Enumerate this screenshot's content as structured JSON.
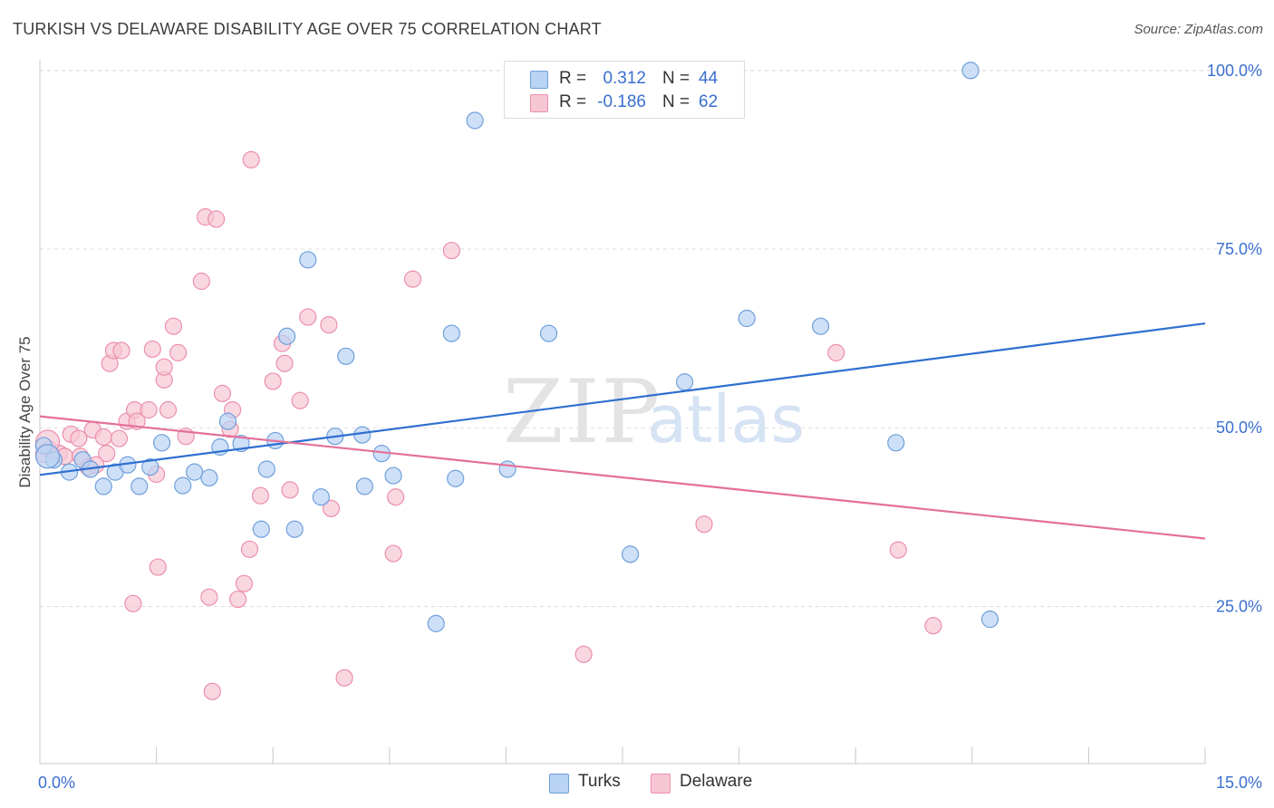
{
  "header": {
    "title": "TURKISH VS DELAWARE DISABILITY AGE OVER 75 CORRELATION CHART",
    "source": "Source: ZipAtlas.com"
  },
  "legend": {
    "rows": [
      {
        "r_label": "R =",
        "r_value": "0.312",
        "n_label": "N =",
        "n_value": "44"
      },
      {
        "r_label": "R =",
        "r_value": "-0.186",
        "n_label": "N =",
        "n_value": "62"
      }
    ]
  },
  "bottom_legend": {
    "items": [
      {
        "label": "Turks"
      },
      {
        "label": "Delaware"
      }
    ]
  },
  "watermark": {
    "zip": "ZIP",
    "atlas": "atlas"
  },
  "colors": {
    "turks_fill": "#b9d3f3",
    "turks_stroke": "#6f9fdc",
    "turks_line": "#2f6fd0",
    "delaware_fill": "#f7c6d4",
    "delaware_stroke": "#ec8fab",
    "delaware_line": "#e4709a",
    "tick_label": "#3a6fd0",
    "grid": "#dddddd"
  },
  "chart_data": {
    "type": "scatter",
    "title": "TURKISH VS DELAWARE DISABILITY AGE OVER 75 CORRELATION CHART",
    "xlabel": "",
    "ylabel": "Disability Age Over 75",
    "xlim": [
      0,
      15
    ],
    "ylim": [
      3,
      102
    ],
    "x_tick_labels": [
      {
        "value": 0,
        "label": "0.0%"
      },
      {
        "value": 15,
        "label": "15.0%"
      }
    ],
    "y_tick_labels": [
      {
        "value": 25,
        "label": "25.0%"
      },
      {
        "value": 50,
        "label": "50.0%"
      },
      {
        "value": 75,
        "label": "75.0%"
      },
      {
        "value": 100,
        "label": "100.0%"
      }
    ],
    "grid": true,
    "legend_position": "top-center",
    "series": [
      {
        "name": "Turks",
        "r": 0.312,
        "n": 44,
        "trend": [
          [
            0,
            43.4
          ],
          [
            15,
            64.6
          ]
        ],
        "points": [
          [
            0.05,
            47.5
          ],
          [
            0.18,
            45.5
          ],
          [
            0.55,
            45.5
          ],
          [
            0.38,
            43.8
          ],
          [
            0.65,
            44.2
          ],
          [
            0.82,
            41.8
          ],
          [
            0.97,
            43.8
          ],
          [
            1.13,
            44.8
          ],
          [
            1.28,
            41.8
          ],
          [
            1.42,
            44.5
          ],
          [
            1.57,
            47.9
          ],
          [
            1.84,
            41.9
          ],
          [
            1.99,
            43.8
          ],
          [
            2.18,
            43.0
          ],
          [
            2.32,
            47.3
          ],
          [
            2.42,
            50.9
          ],
          [
            2.59,
            47.8
          ],
          [
            2.85,
            35.8
          ],
          [
            2.92,
            44.2
          ],
          [
            3.03,
            48.2
          ],
          [
            3.18,
            62.8
          ],
          [
            3.28,
            35.8
          ],
          [
            3.45,
            73.5
          ],
          [
            3.62,
            40.3
          ],
          [
            3.8,
            48.8
          ],
          [
            3.94,
            60.0
          ],
          [
            4.15,
            49.0
          ],
          [
            4.18,
            41.8
          ],
          [
            4.4,
            46.4
          ],
          [
            4.55,
            43.3
          ],
          [
            5.1,
            22.6
          ],
          [
            5.3,
            63.2
          ],
          [
            5.35,
            42.9
          ],
          [
            5.6,
            93.0
          ],
          [
            6.02,
            44.2
          ],
          [
            6.55,
            63.2
          ],
          [
            7.6,
            32.3
          ],
          [
            8.3,
            56.4
          ],
          [
            9.1,
            65.3
          ],
          [
            10.05,
            64.2
          ],
          [
            11.02,
            47.9
          ],
          [
            11.98,
            100.0
          ],
          [
            12.23,
            23.2
          ],
          [
            0.1,
            46.0
          ]
        ]
      },
      {
        "name": "Delaware",
        "r": -0.186,
        "n": 62,
        "trend": [
          [
            0,
            51.6
          ],
          [
            15,
            34.5
          ]
        ],
        "points": [
          [
            0.05,
            46.3
          ],
          [
            0.12,
            47.0
          ],
          [
            0.25,
            46.4
          ],
          [
            0.32,
            46.0
          ],
          [
            0.4,
            49.1
          ],
          [
            0.5,
            48.5
          ],
          [
            0.52,
            46.0
          ],
          [
            0.62,
            44.5
          ],
          [
            0.68,
            49.7
          ],
          [
            0.72,
            44.8
          ],
          [
            0.82,
            48.7
          ],
          [
            0.86,
            46.4
          ],
          [
            0.9,
            59.0
          ],
          [
            0.95,
            60.8
          ],
          [
            1.02,
            48.5
          ],
          [
            1.05,
            60.8
          ],
          [
            1.12,
            50.9
          ],
          [
            1.2,
            25.4
          ],
          [
            1.22,
            52.5
          ],
          [
            1.25,
            50.9
          ],
          [
            1.4,
            52.5
          ],
          [
            1.45,
            61.0
          ],
          [
            1.5,
            43.5
          ],
          [
            1.52,
            30.5
          ],
          [
            1.6,
            56.7
          ],
          [
            1.6,
            58.5
          ],
          [
            1.65,
            52.5
          ],
          [
            1.72,
            64.2
          ],
          [
            1.78,
            60.5
          ],
          [
            1.88,
            48.8
          ],
          [
            2.08,
            70.5
          ],
          [
            2.13,
            79.5
          ],
          [
            2.18,
            26.3
          ],
          [
            2.22,
            13.1
          ],
          [
            2.27,
            79.2
          ],
          [
            2.35,
            54.8
          ],
          [
            2.45,
            49.8
          ],
          [
            2.48,
            52.5
          ],
          [
            2.55,
            26.0
          ],
          [
            2.63,
            28.2
          ],
          [
            2.7,
            33.0
          ],
          [
            2.72,
            87.5
          ],
          [
            2.84,
            40.5
          ],
          [
            3.0,
            56.5
          ],
          [
            3.12,
            61.8
          ],
          [
            3.15,
            59.0
          ],
          [
            3.22,
            41.3
          ],
          [
            3.35,
            53.8
          ],
          [
            3.45,
            65.5
          ],
          [
            3.72,
            64.4
          ],
          [
            3.75,
            38.7
          ],
          [
            3.92,
            15.0
          ],
          [
            4.55,
            32.4
          ],
          [
            4.58,
            40.3
          ],
          [
            4.8,
            70.8
          ],
          [
            5.3,
            74.8
          ],
          [
            7.0,
            18.3
          ],
          [
            8.55,
            36.5
          ],
          [
            10.25,
            60.5
          ],
          [
            11.05,
            32.9
          ],
          [
            11.5,
            22.3
          ],
          [
            0.1,
            48.0
          ]
        ]
      }
    ]
  }
}
